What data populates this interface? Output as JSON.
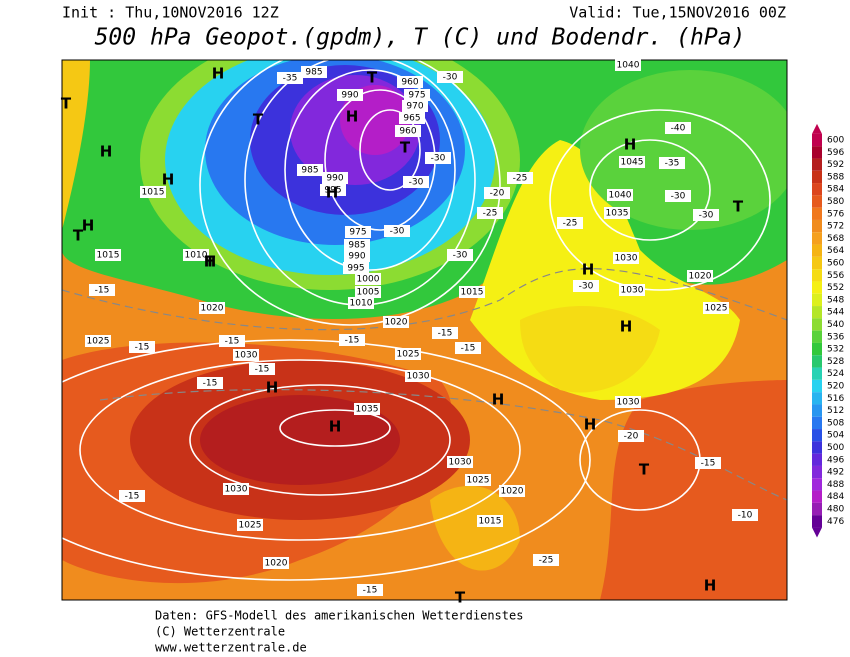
{
  "header": {
    "init": "Init : Thu,10NOV2016 12Z",
    "valid": "Valid: Tue,15NOV2016 00Z",
    "title": "500 hPa Geopot.(gpdm), T (C) und Bodendr. (hPa)"
  },
  "colorbar": [
    {
      "label": "600",
      "color": "#c0004e"
    },
    {
      "label": "596",
      "color": "#a8002c"
    },
    {
      "label": "592",
      "color": "#b41e1e"
    },
    {
      "label": "588",
      "color": "#c83218"
    },
    {
      "label": "584",
      "color": "#dc461e"
    },
    {
      "label": "580",
      "color": "#e65a1e"
    },
    {
      "label": "576",
      "color": "#f0781e"
    },
    {
      "label": "572",
      "color": "#f08c1e"
    },
    {
      "label": "568",
      "color": "#f5a01e"
    },
    {
      "label": "564",
      "color": "#f5b414"
    },
    {
      "label": "560",
      "color": "#f5c814"
    },
    {
      "label": "556",
      "color": "#f5dc14"
    },
    {
      "label": "552",
      "color": "#f5f014"
    },
    {
      "label": "548",
      "color": "#dcf01e"
    },
    {
      "label": "544",
      "color": "#b4e628"
    },
    {
      "label": "540",
      "color": "#8cdc32"
    },
    {
      "label": "536",
      "color": "#5ad23c"
    },
    {
      "label": "532",
      "color": "#32c83c"
    },
    {
      "label": "528",
      "color": "#28c86e"
    },
    {
      "label": "524",
      "color": "#28d2b4"
    },
    {
      "label": "520",
      "color": "#28d2f0"
    },
    {
      "label": "516",
      "color": "#28b4f0"
    },
    {
      "label": "512",
      "color": "#2896f0"
    },
    {
      "label": "508",
      "color": "#2878f0"
    },
    {
      "label": "504",
      "color": "#2850e6"
    },
    {
      "label": "500",
      "color": "#3c32dc"
    },
    {
      "label": "496",
      "color": "#6428dc"
    },
    {
      "label": "492",
      "color": "#8228dc"
    },
    {
      "label": "488",
      "color": "#a028dc"
    },
    {
      "label": "484",
      "color": "#b41ec8"
    },
    {
      "label": "480",
      "color": "#961eb4"
    },
    {
      "label": "476",
      "color": "#640096"
    }
  ],
  "map": {
    "labels": [
      "985",
      "990",
      "960",
      "975",
      "970",
      "965",
      "960",
      "985",
      "990",
      "995",
      "975",
      "985",
      "990",
      "995",
      "1000",
      "1005",
      "1010",
      "1020",
      "1015",
      "1015",
      "1010",
      "1020",
      "1025",
      "1030",
      "1035",
      "1030",
      "1025",
      "1030",
      "1025",
      "1020",
      "1015",
      "1020",
      "1030",
      "1025",
      "1040",
      "1030",
      "1045",
      "1040",
      "1035",
      "1030",
      "1015",
      "1020",
      "1025",
      "1030",
      "-35",
      "-30",
      "-30",
      "-30",
      "-30",
      "-25",
      "-20",
      "-25",
      "-30",
      "-40",
      "-35",
      "-30",
      "-30",
      "-15",
      "-15",
      "-15",
      "-15",
      "-15",
      "-15",
      "-15",
      "-15",
      "-10",
      "-15",
      "-15",
      "-20",
      "-25",
      "-30",
      "-15",
      "-25"
    ],
    "symbols": [
      "H",
      "T",
      "H",
      "H",
      "T",
      "H",
      "H",
      "T",
      "H",
      "T",
      "H",
      "H",
      "T",
      "H",
      "H",
      "H",
      "H",
      "H",
      "T",
      "H",
      "T",
      "H",
      "T",
      "T"
    ]
  },
  "footer": [
    "Daten: GFS-Modell des amerikanischen Wetterdienstes",
    "(C) Wetterzentrale",
    "www.wetterzentrale.de"
  ]
}
